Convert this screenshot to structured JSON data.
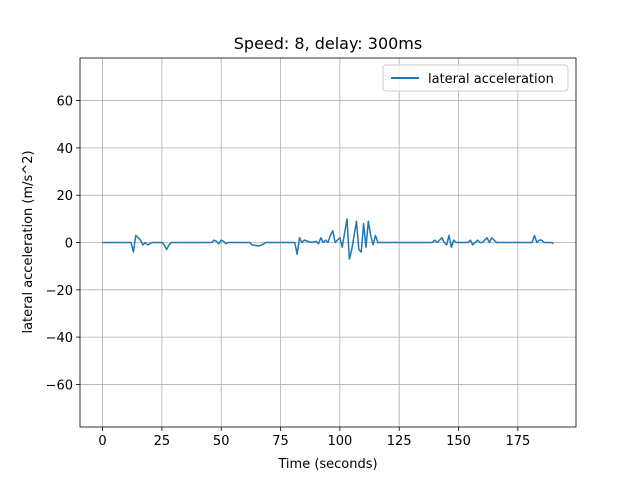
{
  "chart_data": {
    "type": "line",
    "title": "Speed: 8, delay: 300ms",
    "x_label": "Time (seconds)",
    "y_label": "lateral acceleration (m/s^2)",
    "x": [
      0,
      12,
      13,
      14,
      15,
      16,
      17,
      18,
      19,
      20,
      21,
      25,
      26,
      27,
      28,
      29,
      35,
      46,
      47,
      48,
      49,
      50,
      51,
      52,
      53,
      62,
      63,
      66,
      68,
      69,
      81,
      82,
      83,
      84,
      85,
      88,
      90,
      91,
      92,
      93,
      94,
      95,
      96,
      97,
      98,
      99,
      100,
      101,
      102,
      103,
      104,
      105,
      106,
      107,
      108,
      109,
      110,
      111,
      112,
      113,
      114,
      115,
      116,
      117,
      139,
      140,
      141,
      142,
      143,
      144,
      145,
      146,
      147,
      148,
      149,
      150,
      154,
      155,
      156,
      157,
      158,
      159,
      160,
      161,
      162,
      163,
      164,
      165,
      166,
      181,
      182,
      183,
      184,
      185,
      186,
      188,
      189,
      190
    ],
    "series": [
      {
        "name": "lateral acceleration",
        "color": "#1f77b4",
        "values": [
          0,
          0,
          -4,
          3,
          2,
          1,
          -1,
          0,
          -1,
          -0.5,
          0,
          0,
          -1,
          -3,
          -1,
          0,
          0,
          0,
          1,
          0.5,
          -0.5,
          1,
          0.5,
          -0.5,
          0,
          0,
          -1,
          -1.5,
          -0.5,
          0,
          0,
          -5,
          2,
          0,
          1,
          0,
          0.5,
          -0.5,
          2,
          0,
          1,
          0,
          3,
          5,
          0,
          1,
          2,
          -2,
          4,
          10,
          -7,
          -3,
          3,
          9,
          -3,
          -4,
          8,
          -2,
          9,
          3,
          -1,
          3,
          0,
          0,
          0,
          1,
          0,
          1,
          2,
          0,
          -1,
          3,
          -2,
          1,
          0,
          0,
          0,
          1,
          -1,
          0,
          1,
          0,
          0,
          1,
          2,
          0,
          2,
          1,
          0,
          0,
          3,
          0,
          1,
          1,
          0,
          0,
          0,
          -0.5
        ]
      }
    ],
    "xlim": [
      -9.5,
      199.5
    ],
    "xticks": [
      0,
      25,
      50,
      75,
      100,
      125,
      150,
      175
    ],
    "ylim": [
      -78,
      78
    ],
    "yticks": [
      -60,
      -40,
      -20,
      0,
      20,
      40,
      60
    ],
    "grid": true,
    "legend": "upper right"
  }
}
